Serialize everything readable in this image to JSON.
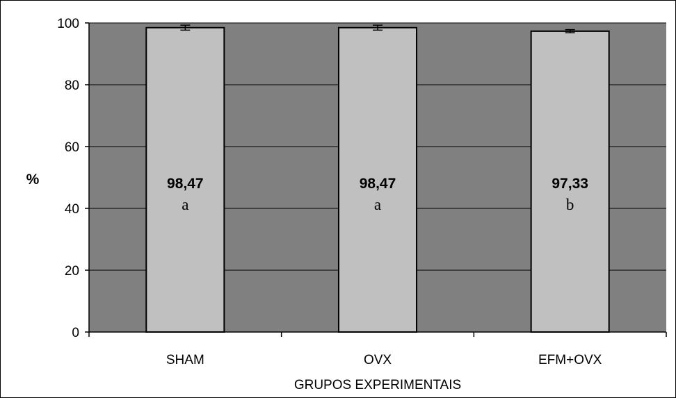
{
  "chart_data": {
    "type": "bar",
    "title": "",
    "xlabel": "GRUPOS EXPERIMENTAIS",
    "ylabel": "%",
    "categories": [
      "SHAM",
      "OVX",
      "EFM+OVX"
    ],
    "values": [
      98.47,
      98.47,
      97.33
    ],
    "errors": [
      0.8,
      0.8,
      0.5
    ],
    "value_labels": [
      "98,47",
      "98,47",
      "97,33"
    ],
    "group_letters": [
      "a",
      "a",
      "b"
    ],
    "ylim": [
      0,
      100
    ],
    "yticks": [
      0,
      20,
      40,
      60,
      80,
      100
    ],
    "grid": true,
    "legend": "none",
    "colors": {
      "plot_background": "#808080",
      "bar_fill": "#c0c0c0",
      "bar_stroke": "#000000",
      "gridline": "#000000"
    }
  }
}
